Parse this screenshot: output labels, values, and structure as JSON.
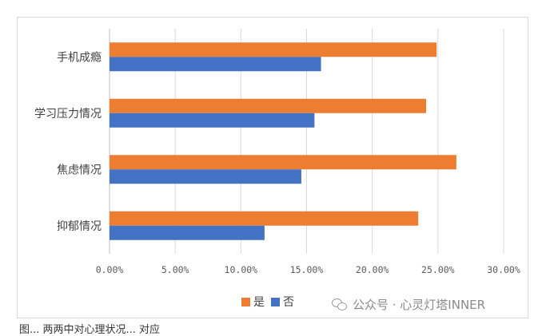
{
  "chart_data": {
    "type": "bar",
    "orientation": "horizontal",
    "categories": [
      "抑郁情况",
      "焦虑情况",
      "学习压力情况",
      "手机成瘾"
    ],
    "series": [
      {
        "name": "否",
        "color": "#4472c4",
        "values": [
          0.118,
          0.146,
          0.156,
          0.161
        ]
      },
      {
        "name": "是",
        "color": "#ed7d31",
        "values": [
          0.235,
          0.264,
          0.241,
          0.249
        ]
      }
    ],
    "xlim": [
      0,
      0.3
    ],
    "xticks": [
      "0.00%",
      "5.00%",
      "10.00%",
      "15.00%",
      "20.00%",
      "25.00%",
      "30.00%"
    ],
    "grid": true,
    "legend_position": "bottom"
  },
  "legend": {
    "yes_label": "是",
    "no_label": "否"
  },
  "watermark": {
    "text": "公众号 · 心灵灯塔INNER"
  },
  "caption": {
    "text": "图... 两两中对心理状况... 对应"
  }
}
